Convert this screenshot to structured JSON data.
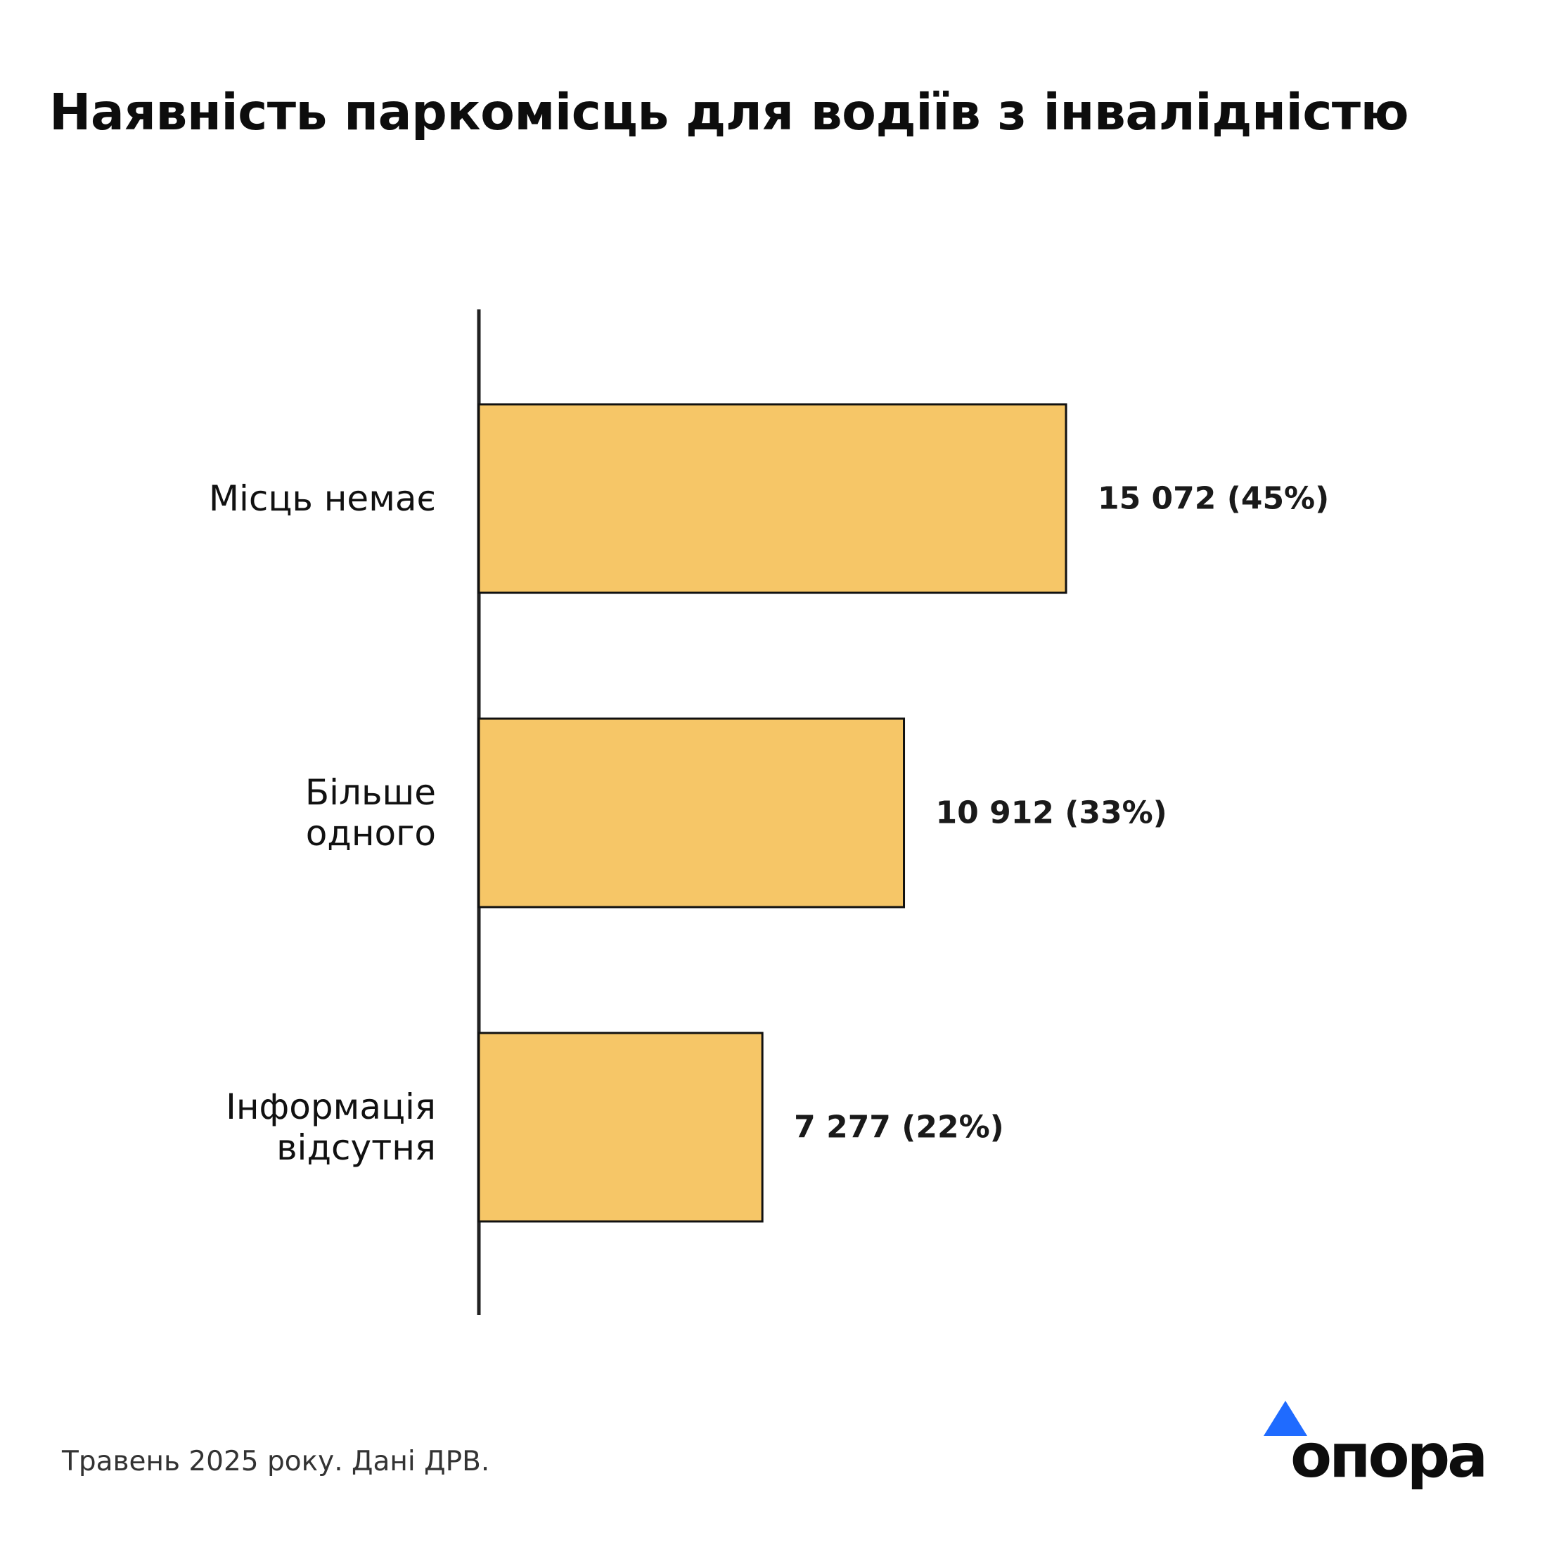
{
  "title": "Наявність паркомісць для водіїв з інвалідністю",
  "source": "Травень 2025 року. Дані ДРВ.",
  "logo": {
    "icon": "triangle-icon",
    "text": "опора",
    "accent_color": "#1f6bff"
  },
  "chart_data": {
    "type": "bar",
    "orientation": "horizontal",
    "title": "Наявність паркомісць для водіїв з інвалідністю",
    "xlabel": "",
    "ylabel": "",
    "grid": false,
    "categories": [
      [
        "Місць немає"
      ],
      [
        "Більше",
        "одного"
      ],
      [
        "Інформація",
        "відсутня"
      ]
    ],
    "values": [
      15072,
      10912,
      7277
    ],
    "data_labels": [
      "15 072 (45%)",
      "10 912 (33%)",
      "7 277 (22%)"
    ],
    "bar_color": "#f6c667",
    "edge_color": "#111111"
  }
}
